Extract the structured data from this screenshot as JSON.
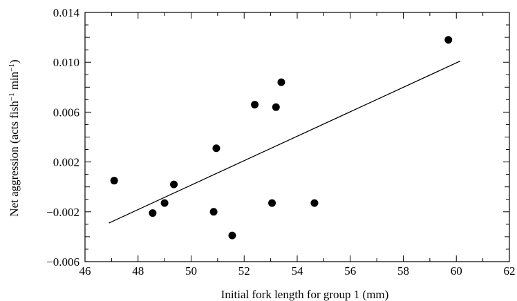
{
  "chart_data": {
    "type": "scatter",
    "title": "",
    "xlabel": "Initial fork length for group 1 (mm)",
    "ylabel_main": "Net aggression (acts fish",
    "ylabel_sup1": "−1",
    "ylabel_mid": " min",
    "ylabel_sup2": "−1",
    "ylabel_end": ")",
    "xlim": [
      46,
      62
    ],
    "ylim": [
      -0.006,
      0.014
    ],
    "xticks": [
      46,
      48,
      50,
      52,
      54,
      56,
      58,
      60,
      62
    ],
    "xtick_labels": [
      "46",
      "48",
      "50",
      "52",
      "54",
      "56",
      "58",
      "60",
      "62"
    ],
    "yticks": [
      -0.006,
      -0.002,
      0.002,
      0.006,
      0.01,
      0.014
    ],
    "ytick_labels": [
      "−0.006",
      "−0.002",
      "0.002",
      "0.006",
      "0.010",
      "0.014"
    ],
    "grid": false,
    "series": [
      {
        "points": [
          {
            "x": 47.1,
            "y": 0.0005
          },
          {
            "x": 48.55,
            "y": -0.0021
          },
          {
            "x": 49.0,
            "y": -0.0013
          },
          {
            "x": 49.35,
            "y": 0.0002
          },
          {
            "x": 50.85,
            "y": -0.002
          },
          {
            "x": 50.95,
            "y": 0.0031
          },
          {
            "x": 51.55,
            "y": -0.0039
          },
          {
            "x": 52.4,
            "y": 0.0066
          },
          {
            "x": 53.05,
            "y": -0.0013
          },
          {
            "x": 53.2,
            "y": 0.0064
          },
          {
            "x": 53.4,
            "y": 0.0084
          },
          {
            "x": 54.65,
            "y": -0.0013
          },
          {
            "x": 59.7,
            "y": 0.0118
          }
        ]
      }
    ],
    "trendline": {
      "x": [
        46.9,
        60.15
      ],
      "y": [
        -0.0029,
        0.0101
      ]
    }
  }
}
